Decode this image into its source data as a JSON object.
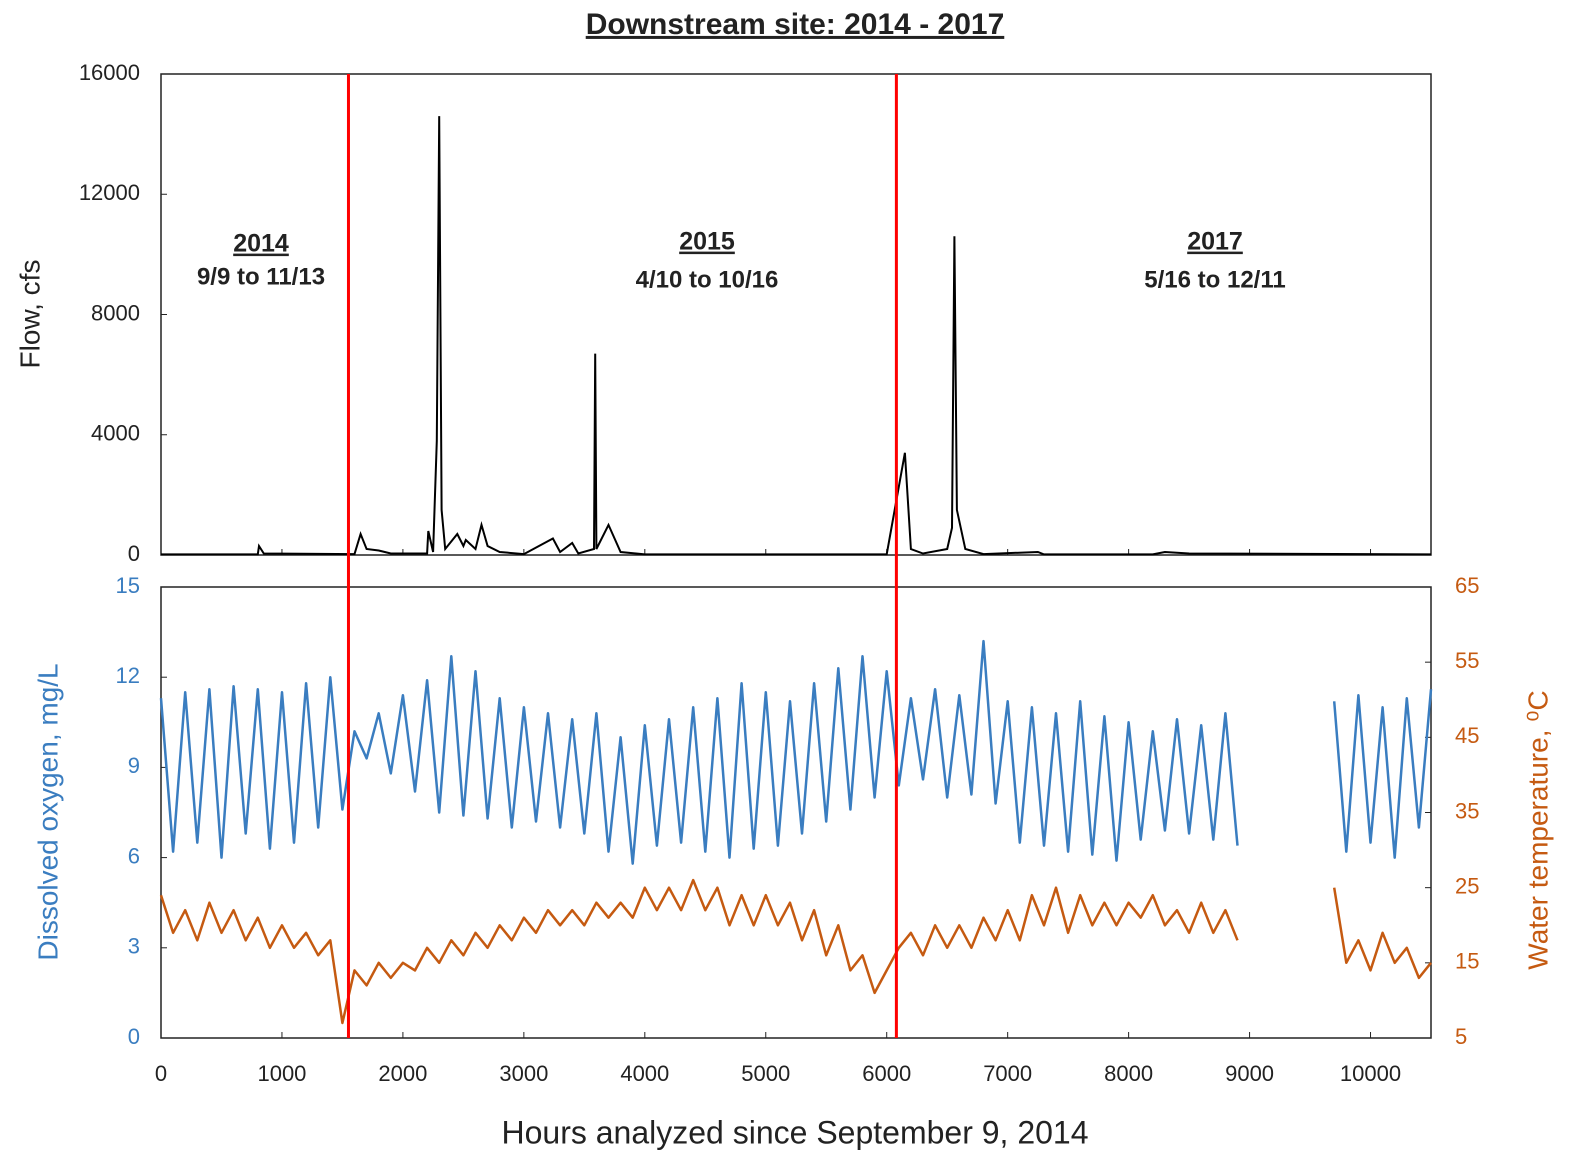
{
  "chart_data": [
    {
      "type": "line",
      "title": "Downstream site: 2014 - 2017",
      "ylabel": "Flow, cfs",
      "x": [
        0,
        800,
        810,
        850,
        1600,
        1650,
        1700,
        1800,
        1900,
        2200,
        2210,
        2250,
        2280,
        2300,
        2320,
        2350,
        2450,
        2500,
        2520,
        2600,
        2650,
        2700,
        2800,
        3000,
        3240,
        3300,
        3400,
        3450,
        3580,
        3590,
        3600,
        3700,
        3800,
        4000,
        6000,
        6150,
        6200,
        6300,
        6500,
        6540,
        6560,
        6580,
        6650,
        6800,
        7250,
        7300,
        8200,
        8300,
        8500,
        10500
      ],
      "values": [
        20,
        20,
        300,
        50,
        30,
        700,
        200,
        150,
        50,
        50,
        800,
        100,
        3800,
        14600,
        1500,
        200,
        700,
        300,
        500,
        200,
        1000,
        300,
        100,
        30,
        550,
        100,
        400,
        50,
        200,
        6700,
        200,
        1000,
        100,
        20,
        20,
        3400,
        200,
        50,
        200,
        900,
        10600,
        1500,
        200,
        30,
        100,
        20,
        20,
        100,
        50,
        20
      ],
      "color": "#000000",
      "xlim": [
        0,
        10500
      ],
      "ylim": [
        0,
        16000
      ],
      "yticks": [
        0,
        4000,
        8000,
        12000,
        16000
      ],
      "vlines": [
        1550,
        6080
      ],
      "vline_color": "#ff0000",
      "annotations": [
        {
          "label": "2014",
          "text": "9/9 to 11/13"
        },
        {
          "label": "2015",
          "text": "4/10 to 10/16"
        },
        {
          "label": "2017",
          "text": "5/16 to 12/11"
        }
      ]
    },
    {
      "type": "line",
      "xlabel": "Hours analyzed since September 9, 2014",
      "ylabel": "Dissolved oxygen, mg/L",
      "y2label": "Water temperature, ⁰C",
      "x": [
        0,
        100,
        200,
        300,
        400,
        500,
        600,
        700,
        800,
        900,
        1000,
        1100,
        1200,
        1300,
        1400,
        1500,
        1600,
        1700,
        1800,
        1900,
        2000,
        2100,
        2200,
        2300,
        2400,
        2500,
        2600,
        2700,
        2800,
        2900,
        3000,
        3100,
        3200,
        3300,
        3400,
        3500,
        3600,
        3700,
        3800,
        3900,
        4000,
        4100,
        4200,
        4300,
        4400,
        4500,
        4600,
        4700,
        4800,
        4900,
        5000,
        5100,
        5200,
        5300,
        5400,
        5500,
        5600,
        5700,
        5800,
        5900,
        6000,
        6100,
        6200,
        6300,
        6400,
        6500,
        6600,
        6700,
        6800,
        6900,
        7000,
        7100,
        7200,
        7300,
        7400,
        7500,
        7600,
        7700,
        7800,
        7900,
        8000,
        8100,
        8200,
        8300,
        8400,
        8500,
        8600,
        8700,
        8800,
        8900,
        9000,
        9100,
        9200,
        9300,
        9400,
        9500,
        9600,
        9700,
        9800,
        9900,
        10000,
        10100,
        10200,
        10300,
        10400,
        10500
      ],
      "series": [
        {
          "color": "#3a7dc0",
          "values": [
            11.3,
            6.2,
            11.5,
            6.5,
            11.6,
            6.0,
            11.7,
            6.8,
            11.6,
            6.3,
            11.5,
            6.5,
            11.8,
            7.0,
            12.0,
            7.6,
            10.2,
            9.3,
            10.8,
            8.8,
            11.4,
            8.2,
            11.9,
            7.5,
            12.7,
            7.4,
            12.2,
            7.3,
            11.3,
            7.0,
            11.0,
            7.2,
            10.8,
            7.0,
            10.6,
            6.8,
            10.8,
            6.2,
            10.0,
            5.8,
            10.4,
            6.4,
            10.6,
            6.5,
            11.0,
            6.2,
            11.3,
            6.0,
            11.8,
            6.3,
            11.5,
            6.4,
            11.2,
            6.8,
            11.8,
            7.2,
            12.3,
            7.6,
            12.7,
            8.0,
            12.2,
            8.4,
            11.3,
            8.6,
            11.6,
            8.0,
            11.4,
            8.1,
            13.2,
            7.8,
            11.2,
            6.5,
            11.0,
            6.4,
            10.8,
            6.2,
            11.2,
            6.1,
            10.7,
            5.9,
            10.5,
            6.6,
            10.2,
            6.9,
            10.6,
            6.8,
            10.4,
            6.6,
            10.8,
            6.4,
            null,
            null,
            null,
            null,
            null,
            null,
            null,
            11.2,
            6.2,
            11.4,
            6.5,
            11.0,
            6.0,
            11.3,
            7.0,
            11.6
          ]
        },
        {
          "color": "#c55a11",
          "axis": "y2",
          "values": [
            24,
            19,
            22,
            18,
            23,
            19,
            22,
            18,
            21,
            17,
            20,
            17,
            19,
            16,
            18,
            7,
            14,
            12,
            15,
            13,
            15,
            14,
            17,
            15,
            18,
            16,
            19,
            17,
            20,
            18,
            21,
            19,
            22,
            20,
            22,
            20,
            23,
            21,
            23,
            21,
            25,
            22,
            25,
            22,
            26,
            22,
            25,
            20,
            24,
            20,
            24,
            20,
            23,
            18,
            22,
            16,
            20,
            14,
            16,
            11,
            14,
            17,
            19,
            16,
            20,
            17,
            20,
            17,
            21,
            18,
            22,
            18,
            24,
            20,
            25,
            19,
            24,
            20,
            23,
            20,
            23,
            21,
            24,
            20,
            22,
            19,
            23,
            19,
            22,
            18,
            null,
            null,
            null,
            null,
            null,
            null,
            null,
            25,
            15,
            18,
            14,
            19,
            15,
            17,
            13,
            15
          ]
        }
      ],
      "xlim": [
        0,
        10500
      ],
      "xticks": [
        0,
        1000,
        2000,
        3000,
        4000,
        5000,
        6000,
        7000,
        8000,
        9000,
        10000
      ],
      "ylim": [
        0,
        15
      ],
      "yticks": [
        0,
        3,
        6,
        9,
        12,
        15
      ],
      "y2lim": [
        5,
        65
      ],
      "y2ticks": [
        5,
        15,
        25,
        35,
        45,
        55,
        65
      ],
      "ycolor": "#3a7dc0",
      "y2color": "#c55a11"
    }
  ]
}
